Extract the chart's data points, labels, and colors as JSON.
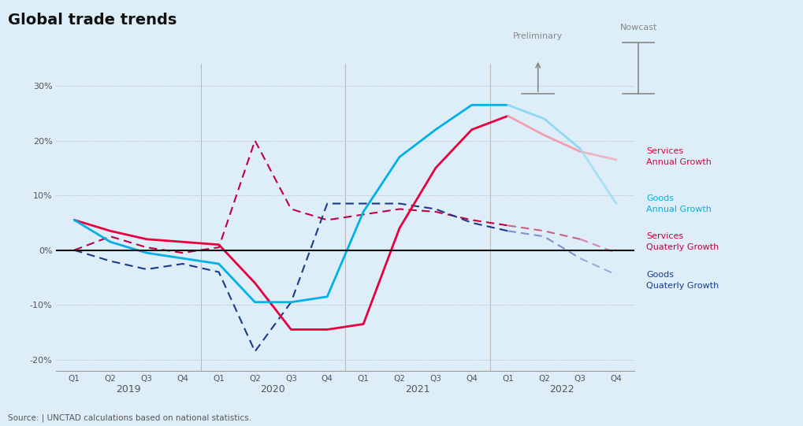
{
  "title": "Global trade trends",
  "background_color": "#deeef8",
  "source_text": "Source: | UNCTAD calculations based on national statistics.",
  "x_labels": [
    "Q1",
    "Q2",
    "Q3",
    "Q4",
    "Q1",
    "Q2",
    "Q3",
    "Q4",
    "Q1",
    "Q2",
    "Q3",
    "Q4",
    "Q1",
    "Q2",
    "Q3",
    "Q4"
  ],
  "year_labels": [
    "2019",
    "2020",
    "2021",
    "2022"
  ],
  "ylim": [
    -22,
    34
  ],
  "yticks": [
    -20,
    -10,
    0,
    10,
    20,
    30
  ],
  "ytick_labels": [
    "-20%",
    "-10%",
    "0%",
    "10%",
    "20%",
    "30%"
  ],
  "services_annual": [
    5.5,
    3.5,
    2.0,
    1.5,
    1.0,
    -6.0,
    -14.5,
    -14.5,
    -13.5,
    4.0,
    15.0,
    22.0,
    24.5,
    21.0,
    18.0,
    16.5
  ],
  "goods_annual": [
    5.5,
    1.5,
    -0.5,
    -1.5,
    -2.5,
    -9.5,
    -9.5,
    -8.5,
    7.0,
    17.0,
    22.0,
    26.5,
    26.5,
    24.0,
    18.5,
    8.5
  ],
  "services_quarterly": [
    0.0,
    2.5,
    0.5,
    -0.5,
    0.5,
    20.0,
    7.5,
    5.5,
    6.5,
    7.5,
    7.0,
    5.5,
    4.5,
    3.5,
    2.0,
    -0.5
  ],
  "goods_quarterly": [
    0.0,
    -2.0,
    -3.5,
    -2.5,
    -4.0,
    -18.5,
    -9.5,
    8.5,
    8.5,
    8.5,
    7.5,
    5.0,
    3.5,
    2.5,
    -1.5,
    -4.5
  ],
  "preliminary_boundary": 13,
  "nowcast_boundary": 15,
  "colors": {
    "services_annual": "#e8003d",
    "goods_annual": "#00b0e8",
    "services_quarterly": "#c00040",
    "goods_quarterly": "#1a3a8a",
    "services_annual_preliminary": "#f0a0b0",
    "goods_annual_preliminary": "#90d8f5",
    "services_quarterly_preliminary": "#d06080",
    "goods_quarterly_preliminary": "#8090c8",
    "zero_line": "#111111",
    "grid": "#aaaaaa",
    "annotation": "#888888",
    "text_services_annual": "#e8003d",
    "text_goods_annual": "#00b0e8",
    "text_services_quarterly": "#c00040",
    "text_goods_quarterly": "#1a3a8a"
  },
  "legend_items": [
    {
      "label": "Services\nAnnual Growth",
      "color_key": "text_services_annual"
    },
    {
      "label": "Goods\nAnnual Growth",
      "color_key": "text_goods_annual"
    },
    {
      "label": "Services\nQuaterly Growth",
      "color_key": "text_services_quarterly"
    },
    {
      "label": "Goods\nQuaterly Growth",
      "color_key": "text_goods_quarterly"
    }
  ]
}
